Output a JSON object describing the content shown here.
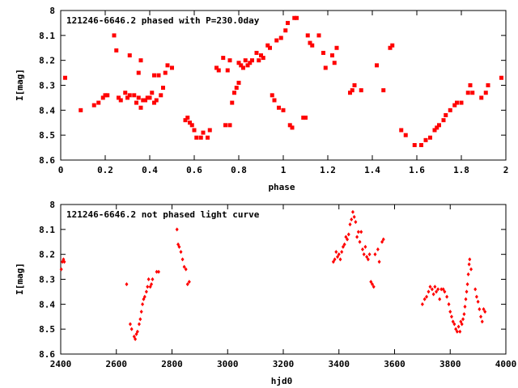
{
  "chart_data": [
    {
      "type": "scatter",
      "title": "121246-6646.2 phased with P=230.0day",
      "xlabel": "phase",
      "ylabel": "I[mag]",
      "xlim": [
        0,
        2
      ],
      "ylim": [
        8,
        8.6
      ],
      "y_inverted": true,
      "x_ticks": [
        "0",
        "0.2",
        "0.4",
        "0.6",
        "0.8",
        "1",
        "1.2",
        "1.4",
        "1.6",
        "1.8",
        "2"
      ],
      "y_ticks": [
        "8",
        "8.1",
        "8.2",
        "8.3",
        "8.4",
        "8.5",
        "8.6"
      ],
      "grid": false,
      "marker_color": "#ff0000",
      "marker": "filled-square",
      "points": [
        [
          0.02,
          8.27
        ],
        [
          0.09,
          8.4
        ],
        [
          0.15,
          8.38
        ],
        [
          0.17,
          8.37
        ],
        [
          0.19,
          8.35
        ],
        [
          0.2,
          8.34
        ],
        [
          0.21,
          8.34
        ],
        [
          0.24,
          8.1
        ],
        [
          0.25,
          8.16
        ],
        [
          0.26,
          8.35
        ],
        [
          0.27,
          8.36
        ],
        [
          0.29,
          8.33
        ],
        [
          0.3,
          8.35
        ],
        [
          0.31,
          8.34
        ],
        [
          0.31,
          8.18
        ],
        [
          0.33,
          8.34
        ],
        [
          0.34,
          8.37
        ],
        [
          0.35,
          8.35
        ],
        [
          0.35,
          8.25
        ],
        [
          0.36,
          8.39
        ],
        [
          0.36,
          8.2
        ],
        [
          0.37,
          8.36
        ],
        [
          0.38,
          8.36
        ],
        [
          0.39,
          8.35
        ],
        [
          0.4,
          8.35
        ],
        [
          0.41,
          8.33
        ],
        [
          0.42,
          8.37
        ],
        [
          0.42,
          8.26
        ],
        [
          0.43,
          8.36
        ],
        [
          0.44,
          8.26
        ],
        [
          0.45,
          8.34
        ],
        [
          0.46,
          8.31
        ],
        [
          0.47,
          8.25
        ],
        [
          0.48,
          8.22
        ],
        [
          0.5,
          8.23
        ],
        [
          0.56,
          8.44
        ],
        [
          0.57,
          8.43
        ],
        [
          0.58,
          8.45
        ],
        [
          0.59,
          8.46
        ],
        [
          0.6,
          8.48
        ],
        [
          0.61,
          8.51
        ],
        [
          0.63,
          8.51
        ],
        [
          0.64,
          8.49
        ],
        [
          0.66,
          8.51
        ],
        [
          0.67,
          8.48
        ],
        [
          0.7,
          8.23
        ],
        [
          0.71,
          8.24
        ],
        [
          0.73,
          8.19
        ],
        [
          0.74,
          8.46
        ],
        [
          0.75,
          8.24
        ],
        [
          0.76,
          8.2
        ],
        [
          0.76,
          8.46
        ],
        [
          0.77,
          8.37
        ],
        [
          0.78,
          8.33
        ],
        [
          0.79,
          8.31
        ],
        [
          0.8,
          8.29
        ],
        [
          0.8,
          8.21
        ],
        [
          0.81,
          8.22
        ],
        [
          0.82,
          8.23
        ],
        [
          0.83,
          8.2
        ],
        [
          0.84,
          8.22
        ],
        [
          0.85,
          8.21
        ],
        [
          0.86,
          8.2
        ],
        [
          0.88,
          8.17
        ],
        [
          0.89,
          8.2
        ],
        [
          0.9,
          8.18
        ],
        [
          0.91,
          8.19
        ],
        [
          0.93,
          8.14
        ],
        [
          0.94,
          8.15
        ],
        [
          0.95,
          8.34
        ],
        [
          0.96,
          8.36
        ],
        [
          0.97,
          8.12
        ],
        [
          0.98,
          8.39
        ],
        [
          0.99,
          8.11
        ],
        [
          1.0,
          8.4
        ],
        [
          1.01,
          8.08
        ],
        [
          1.02,
          8.05
        ],
        [
          1.03,
          8.46
        ],
        [
          1.04,
          8.47
        ],
        [
          1.05,
          8.03
        ],
        [
          1.06,
          8.03
        ],
        [
          1.09,
          8.43
        ],
        [
          1.1,
          8.43
        ],
        [
          1.11,
          8.1
        ],
        [
          1.12,
          8.13
        ],
        [
          1.13,
          8.14
        ],
        [
          1.16,
          8.1
        ],
        [
          1.18,
          8.17
        ],
        [
          1.19,
          8.23
        ],
        [
          1.22,
          8.18
        ],
        [
          1.23,
          8.21
        ],
        [
          1.24,
          8.15
        ],
        [
          1.3,
          8.33
        ],
        [
          1.31,
          8.32
        ],
        [
          1.32,
          8.3
        ],
        [
          1.35,
          8.32
        ],
        [
          1.42,
          8.22
        ],
        [
          1.45,
          8.32
        ],
        [
          1.48,
          8.15
        ],
        [
          1.49,
          8.14
        ],
        [
          1.53,
          8.48
        ],
        [
          1.55,
          8.5
        ],
        [
          1.59,
          8.54
        ],
        [
          1.62,
          8.54
        ],
        [
          1.64,
          8.52
        ],
        [
          1.66,
          8.51
        ],
        [
          1.68,
          8.48
        ],
        [
          1.69,
          8.47
        ],
        [
          1.7,
          8.46
        ],
        [
          1.72,
          8.44
        ],
        [
          1.73,
          8.42
        ],
        [
          1.75,
          8.4
        ],
        [
          1.77,
          8.38
        ],
        [
          1.78,
          8.37
        ],
        [
          1.8,
          8.37
        ],
        [
          1.83,
          8.33
        ],
        [
          1.84,
          8.3
        ],
        [
          1.85,
          8.33
        ],
        [
          1.89,
          8.35
        ],
        [
          1.91,
          8.33
        ],
        [
          1.92,
          8.3
        ],
        [
          1.98,
          8.27
        ]
      ]
    },
    {
      "type": "scatter",
      "title": "121246-6646.2 not phased light curve",
      "xlabel": "hjd0",
      "ylabel": "I[mag]",
      "xlim": [
        2400,
        4000
      ],
      "ylim": [
        8,
        8.6
      ],
      "y_inverted": true,
      "x_ticks": [
        "2400",
        "2600",
        "2800",
        "3000",
        "3200",
        "3400",
        "3600",
        "3800",
        "4000"
      ],
      "y_ticks": [
        "8",
        "8.1",
        "8.2",
        "8.3",
        "8.4",
        "8.5",
        "8.6"
      ],
      "grid": false,
      "marker_color": "#ff0000",
      "marker": "small-diamond",
      "points": [
        [
          2402,
          8.26
        ],
        [
          2406,
          8.23
        ],
        [
          2410,
          8.22
        ],
        [
          2413,
          8.23
        ],
        [
          2637,
          8.32
        ],
        [
          2650,
          8.48
        ],
        [
          2655,
          8.5
        ],
        [
          2664,
          8.53
        ],
        [
          2668,
          8.54
        ],
        [
          2672,
          8.52
        ],
        [
          2676,
          8.51
        ],
        [
          2682,
          8.48
        ],
        [
          2686,
          8.46
        ],
        [
          2690,
          8.43
        ],
        [
          2694,
          8.4
        ],
        [
          2698,
          8.38
        ],
        [
          2702,
          8.37
        ],
        [
          2708,
          8.35
        ],
        [
          2712,
          8.33
        ],
        [
          2716,
          8.3
        ],
        [
          2722,
          8.33
        ],
        [
          2726,
          8.32
        ],
        [
          2730,
          8.3
        ],
        [
          2745,
          8.27
        ],
        [
          2752,
          8.27
        ],
        [
          2818,
          8.1
        ],
        [
          2822,
          8.16
        ],
        [
          2826,
          8.17
        ],
        [
          2832,
          8.19
        ],
        [
          2838,
          8.22
        ],
        [
          2844,
          8.25
        ],
        [
          2850,
          8.26
        ],
        [
          2856,
          8.32
        ],
        [
          2862,
          8.31
        ],
        [
          3380,
          8.23
        ],
        [
          3385,
          8.22
        ],
        [
          3390,
          8.19
        ],
        [
          3395,
          8.21
        ],
        [
          3400,
          8.2
        ],
        [
          3405,
          8.22
        ],
        [
          3410,
          8.19
        ],
        [
          3415,
          8.17
        ],
        [
          3420,
          8.16
        ],
        [
          3425,
          8.13
        ],
        [
          3430,
          8.14
        ],
        [
          3435,
          8.12
        ],
        [
          3440,
          8.08
        ],
        [
          3445,
          8.06
        ],
        [
          3450,
          8.03
        ],
        [
          3455,
          8.05
        ],
        [
          3460,
          8.07
        ],
        [
          3465,
          8.13
        ],
        [
          3470,
          8.11
        ],
        [
          3475,
          8.15
        ],
        [
          3480,
          8.11
        ],
        [
          3485,
          8.18
        ],
        [
          3490,
          8.2
        ],
        [
          3495,
          8.17
        ],
        [
          3500,
          8.21
        ],
        [
          3505,
          8.22
        ],
        [
          3510,
          8.2
        ],
        [
          3515,
          8.31
        ],
        [
          3520,
          8.32
        ],
        [
          3525,
          8.33
        ],
        [
          3530,
          8.2
        ],
        [
          3540,
          8.18
        ],
        [
          3545,
          8.23
        ],
        [
          3555,
          8.15
        ],
        [
          3560,
          8.14
        ],
        [
          3700,
          8.4
        ],
        [
          3708,
          8.38
        ],
        [
          3715,
          8.37
        ],
        [
          3722,
          8.35
        ],
        [
          3728,
          8.33
        ],
        [
          3735,
          8.34
        ],
        [
          3740,
          8.36
        ],
        [
          3745,
          8.33
        ],
        [
          3750,
          8.35
        ],
        [
          3756,
          8.34
        ],
        [
          3762,
          8.38
        ],
        [
          3768,
          8.34
        ],
        [
          3775,
          8.34
        ],
        [
          3780,
          8.35
        ],
        [
          3788,
          8.37
        ],
        [
          3795,
          8.4
        ],
        [
          3800,
          8.43
        ],
        [
          3805,
          8.45
        ],
        [
          3810,
          8.47
        ],
        [
          3815,
          8.48
        ],
        [
          3820,
          8.5
        ],
        [
          3825,
          8.51
        ],
        [
          3830,
          8.49
        ],
        [
          3835,
          8.51
        ],
        [
          3838,
          8.47
        ],
        [
          3842,
          8.48
        ],
        [
          3846,
          8.46
        ],
        [
          3850,
          8.44
        ],
        [
          3853,
          8.41
        ],
        [
          3856,
          8.38
        ],
        [
          3859,
          8.35
        ],
        [
          3862,
          8.32
        ],
        [
          3865,
          8.28
        ],
        [
          3868,
          8.24
        ],
        [
          3870,
          8.22
        ],
        [
          3875,
          8.26
        ],
        [
          3890,
          8.34
        ],
        [
          3895,
          8.37
        ],
        [
          3900,
          8.39
        ],
        [
          3905,
          8.42
        ],
        [
          3910,
          8.45
        ],
        [
          3915,
          8.47
        ],
        [
          3920,
          8.42
        ],
        [
          3925,
          8.43
        ]
      ]
    }
  ]
}
